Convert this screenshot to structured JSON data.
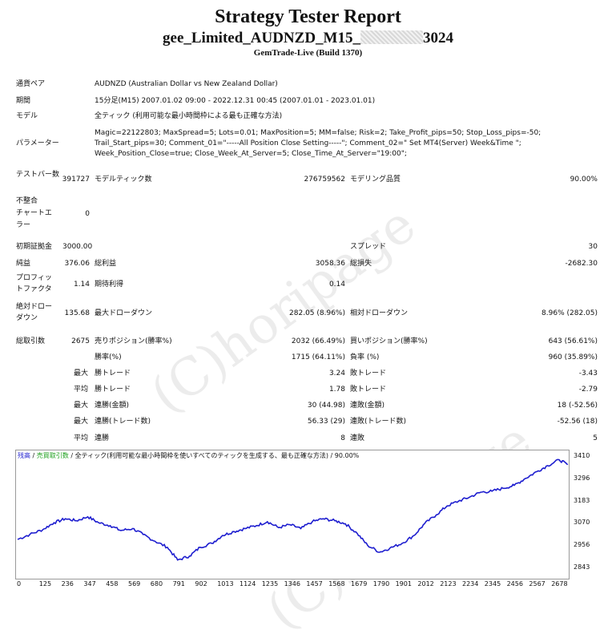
{
  "report": {
    "title": "Strategy Tester Report",
    "ea_name_prefix": "gee_Limited_AUDNZD_M15_",
    "ea_name_suffix": "3024",
    "server": "GemTrade-Live (Build 1370)"
  },
  "settings": {
    "pair_label": "通貨ペア",
    "pair_value": "AUDNZD (Australian Dollar vs New Zealand Dollar)",
    "period_label": "期間",
    "period_value": "15分足(M15) 2007.01.02 09:00 - 2022.12.31 00:45 (2007.01.01 - 2023.01.01)",
    "model_label": "モデル",
    "model_value": "全ティック (利用可能な最小時間枠による最も正確な方法)",
    "params_label": "パラメーター",
    "params_line1": "Magic=22122803; MaxSpread=5; Lots=0.01; MaxPosition=5; MM=false; Risk=2; Take_Profit_pips=50; Stop_Loss_pips=-50;",
    "params_line2": "Trail_Start_pips=30; Comment_01=\"-----All Position Close Setting-----\"; Comment_02=\" Set MT4(Server) Week&Time \";",
    "params_line3": "Week_Position_Close=true; Close_Week_At_Server=5; Close_Time_At_Server=\"19:00\";"
  },
  "quality": {
    "bars_label": "テストバー数",
    "bars_value": "391727",
    "ticks_label": "モデルティック数",
    "ticks_value": "276759562",
    "quality_label": "モデリング品質",
    "quality_value": "90.00%",
    "mismatch_label_1": "不整合",
    "mismatch_label_2": "チャートエ",
    "mismatch_label_3": "ラー",
    "mismatch_value": "0"
  },
  "results": {
    "deposit_label": "初期証拠金",
    "deposit_value": "3000.00",
    "spread_label": "スプレッド",
    "spread_value": "30",
    "net_label": "純益",
    "net_value": "376.06",
    "gross_profit_label": "総利益",
    "gross_profit_value": "3058.36",
    "gross_loss_label": "総損失",
    "gross_loss_value": "-2682.30",
    "pf_label_1": "プロフィッ",
    "pf_label_2": "トファクタ",
    "pf_value": "1.14",
    "expected_label": "期待利得",
    "expected_value": "0.14",
    "abs_dd_label_1": "絶対ドロー",
    "abs_dd_label_2": "ダウン",
    "abs_dd_value": "135.68",
    "max_dd_label": "最大ドローダウン",
    "max_dd_value": "282.05 (8.96%)",
    "rel_dd_label": "相対ドローダウン",
    "rel_dd_value": "8.96% (282.05)"
  },
  "trades": {
    "total_label": "総取引数",
    "total_value": "2675",
    "short_label": "売りポジション(勝率%)",
    "short_value": "2032 (66.49%)",
    "long_label": "買いポジション(勝率%)",
    "long_value": "643 (56.61%)",
    "win_label": "勝率(%)",
    "win_value": "1715 (64.11%)",
    "loss_label": "負率 (%)",
    "loss_value": "960 (35.89%)",
    "max_label": "最大",
    "max_win_label": "勝トレード",
    "max_win_value": "3.24",
    "max_loss_label": "敗トレード",
    "max_loss_value": "-3.43",
    "avg_label": "平均",
    "avg_win_label": "勝トレード",
    "avg_win_value": "1.78",
    "avg_loss_label": "敗トレード",
    "avg_loss_value": "-2.79",
    "max2_label": "最大",
    "consec_win_amt_label": "連勝(金額)",
    "consec_win_amt_value": "30 (44.98)",
    "consec_loss_amt_label": "連敗(金額)",
    "consec_loss_amt_value": "18 (-52.56)",
    "max3_label": "最大",
    "consec_win_tr_label": "連勝(トレード数)",
    "consec_win_tr_value": "56.33 (29)",
    "consec_loss_tr_label": "連敗(トレード数)",
    "consec_loss_tr_value": "-52.56 (18)",
    "avg2_label": "平均",
    "avg_consec_win_label": "連勝",
    "avg_consec_win_value": "8",
    "avg_consec_loss_label": "連敗",
    "avg_consec_loss_value": "5"
  },
  "watermark": "(C)horipage",
  "chart_header": {
    "balance": "残高",
    "sep1": " / ",
    "lots": "売買取引数",
    "sep2": " / ",
    "model": "全ティック(利用可能な最小時間枠を使いすべてのティックを生成する、最も正確な方法)",
    "quality": " / 90.00%"
  },
  "colors": {
    "line": "#1d1dcf",
    "balance": "#1d1dcf",
    "lots": "#1a9e1a"
  },
  "chart_data": {
    "type": "line",
    "title": "",
    "xlabel": "",
    "ylabel": "",
    "x_ticks": [
      "0",
      "125",
      "236",
      "347",
      "458",
      "569",
      "680",
      "791",
      "902",
      "1013",
      "1124",
      "1235",
      "1346",
      "1457",
      "1568",
      "1679",
      "1790",
      "1901",
      "2012",
      "2123",
      "2234",
      "2345",
      "2456",
      "2567",
      "2678"
    ],
    "y_ticks": [
      "3410",
      "3296",
      "3183",
      "3070",
      "2956",
      "2843"
    ],
    "ylim": [
      2843,
      3410
    ],
    "xlim": [
      0,
      2678
    ],
    "series": [
      {
        "name": "",
        "x": [
          0,
          60,
          125,
          180,
          236,
          290,
          347,
          400,
          458,
          510,
          569,
          620,
          680,
          740,
          791,
          850,
          902,
          960,
          1013,
          1070,
          1124,
          1180,
          1235,
          1290,
          1346,
          1400,
          1457,
          1510,
          1568,
          1620,
          1679,
          1730,
          1790,
          1840,
          1901,
          1960,
          2012,
          2070,
          2123,
          2180,
          2234,
          2290,
          2345,
          2400,
          2456,
          2510,
          2567,
          2620,
          2678,
          2720
        ],
        "values": [
          2990,
          3015,
          3040,
          3075,
          3095,
          3085,
          3105,
          3075,
          3060,
          3035,
          3045,
          3015,
          2980,
          2950,
          2885,
          2905,
          2950,
          2970,
          3010,
          3030,
          3045,
          3060,
          3080,
          3050,
          3065,
          3045,
          3080,
          3095,
          3085,
          3070,
          3020,
          2960,
          2925,
          2945,
          2970,
          3010,
          3070,
          3115,
          3160,
          3185,
          3205,
          3230,
          3235,
          3250,
          3265,
          3300,
          3335,
          3365,
          3395,
          3370
        ]
      }
    ]
  }
}
